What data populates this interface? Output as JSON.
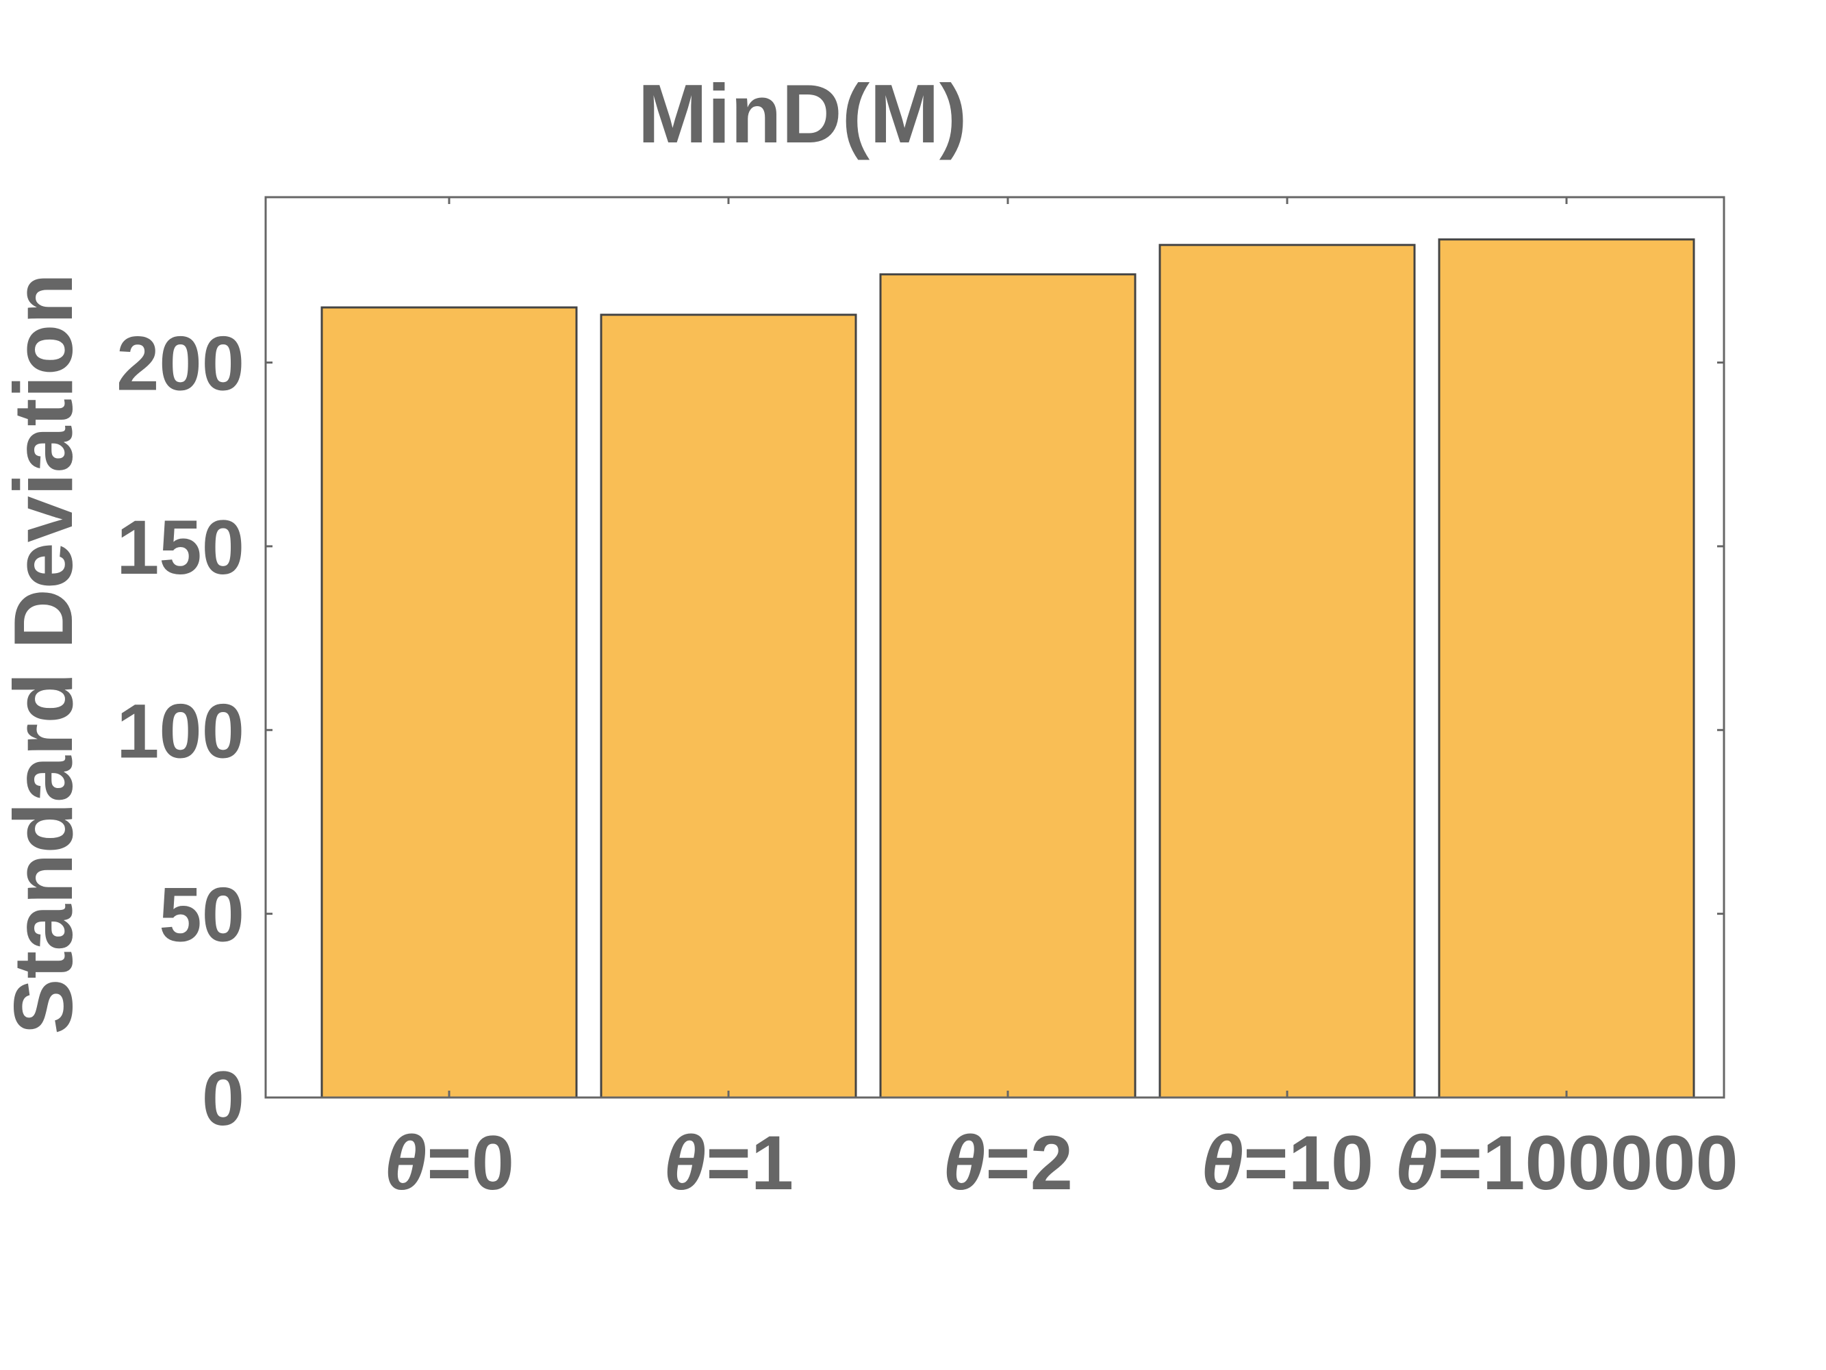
{
  "chart_data": {
    "type": "bar",
    "title": "MinD(M)",
    "xlabel": "",
    "ylabel": "Standard Deviation",
    "categories": [
      {
        "symbol": "θ",
        "rest": "=0"
      },
      {
        "symbol": "θ",
        "rest": "=1"
      },
      {
        "symbol": "θ",
        "rest": "=2"
      },
      {
        "symbol": "θ",
        "rest": "=10"
      },
      {
        "symbol": "θ",
        "rest": "=100000"
      }
    ],
    "values": [
      215,
      213,
      224,
      232,
      233.5
    ],
    "ylim": [
      0,
      245
    ],
    "yticks": [
      0,
      50,
      100,
      150,
      200
    ],
    "grid": false,
    "colors": {
      "bar_fill": "#F9BE55",
      "bar_stroke": "#444444",
      "axis": "#666666",
      "text": "#666666"
    }
  }
}
